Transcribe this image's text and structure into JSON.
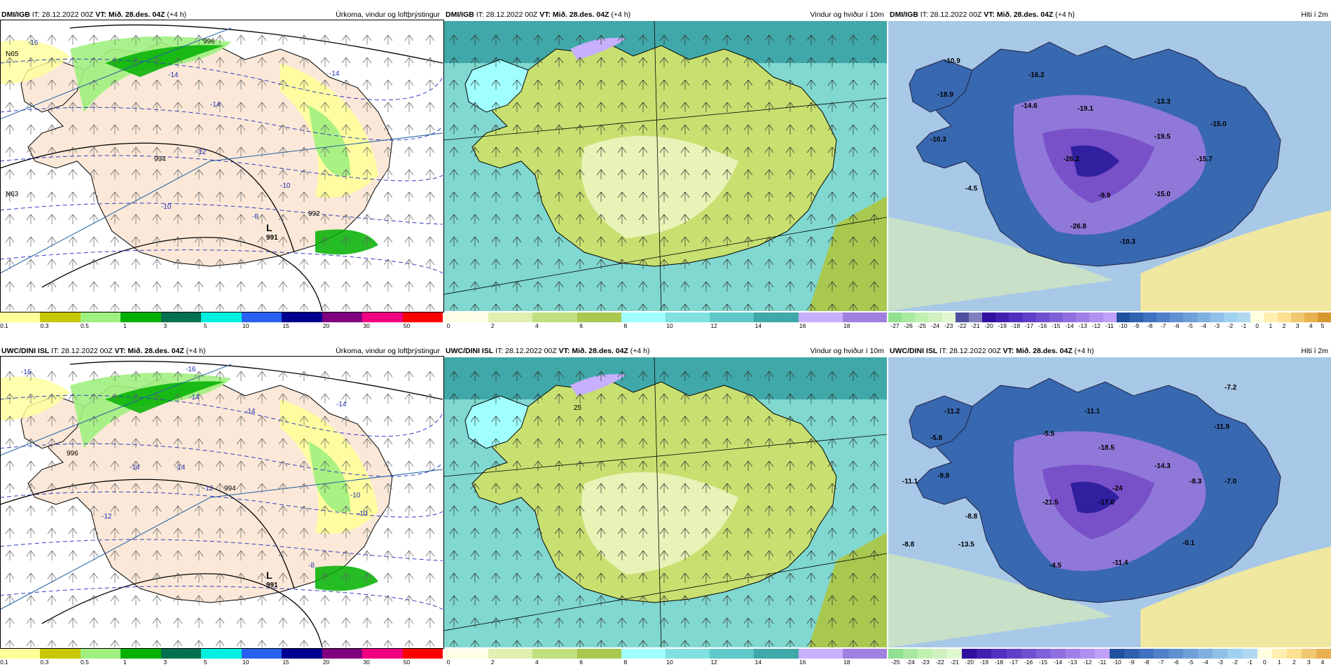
{
  "panels": [
    {
      "id": "p1",
      "model": "DMI/IGB",
      "it": "IT: 28.12.2022 00Z",
      "vt": "VT: Mið. 28.des. 04Z",
      "lead": "(+4 h)",
      "title": "Úrkoma, vindur og loftþrýstingur",
      "kind": "precip",
      "labels": [
        {
          "t": "-16"
        },
        {
          "t": "996"
        },
        {
          "t": "-14"
        },
        {
          "t": "-14"
        },
        {
          "t": "-14"
        },
        {
          "t": "-12"
        },
        {
          "t": "994"
        },
        {
          "t": "-10"
        },
        {
          "t": "-10"
        },
        {
          "t": "-8"
        },
        {
          "t": "992"
        },
        {
          "t": "L"
        },
        {
          "t": "991"
        },
        {
          "t": "N65"
        },
        {
          "t": "N63"
        }
      ]
    },
    {
      "id": "p2",
      "model": "DMI/IGB",
      "it": "IT: 28.12.2022 00Z",
      "vt": "VT: Mið. 28.des. 04Z",
      "lead": "(+4 h)",
      "title": "Vindur og hviður í 10m",
      "kind": "wind",
      "labels": []
    },
    {
      "id": "p3",
      "model": "DMI/IGB",
      "it": "IT: 28.12.2022 00Z",
      "vt": "VT: Mið. 28.des. 04Z",
      "lead": "(+4 h)",
      "title": "Hiti í 2m",
      "kind": "temp",
      "labels": [
        {
          "t": "-10.9"
        },
        {
          "t": "-18.9"
        },
        {
          "t": "-16.2"
        },
        {
          "t": "-14.6"
        },
        {
          "t": "-19.1"
        },
        {
          "t": "-13.3"
        },
        {
          "t": "-10.3"
        },
        {
          "t": "-26.2"
        },
        {
          "t": "-19.5"
        },
        {
          "t": "-15.0"
        },
        {
          "t": "-15.7"
        },
        {
          "t": "-4.5"
        },
        {
          "t": "-9.9"
        },
        {
          "t": "-15.0"
        },
        {
          "t": "-26.8"
        },
        {
          "t": "-10.3"
        }
      ]
    },
    {
      "id": "p4",
      "model": "UWC/DINI ISL",
      "it": "IT: 28.12.2022 00Z",
      "vt": "VT: Mið. 28.des. 04Z",
      "lead": "(+4 h)",
      "title": "Úrkoma, vindur og loftþrýstingur",
      "kind": "precip",
      "labels": [
        {
          "t": "-16"
        },
        {
          "t": "-16"
        },
        {
          "t": "-14"
        },
        {
          "t": "-14"
        },
        {
          "t": "-14"
        },
        {
          "t": "-14"
        },
        {
          "t": "-14"
        },
        {
          "t": "-12"
        },
        {
          "t": "994"
        },
        {
          "t": "-10"
        },
        {
          "t": "-10"
        },
        {
          "t": "-12"
        },
        {
          "t": "-8"
        },
        {
          "t": "L"
        },
        {
          "t": "991"
        },
        {
          "t": "996"
        }
      ]
    },
    {
      "id": "p5",
      "model": "UWC/DINI ISL",
      "it": "IT: 28.12.2022 00Z",
      "vt": "VT: Mið. 28.des. 04Z",
      "lead": "(+4 h)",
      "title": "Vindur og hviður í 10m",
      "kind": "wind",
      "labels": [
        {
          "t": "25"
        }
      ]
    },
    {
      "id": "p6",
      "model": "UWC/DINI ISL",
      "it": "IT: 28.12.2022 00Z",
      "vt": "VT: Mið. 28.des. 04Z",
      "lead": "(+4 h)",
      "title": "Hiti í 2m",
      "kind": "temp",
      "labels": [
        {
          "t": "-7.2"
        },
        {
          "t": "-11.2"
        },
        {
          "t": "-11.1"
        },
        {
          "t": "-11.9"
        },
        {
          "t": "-5.8"
        },
        {
          "t": "-5.5"
        },
        {
          "t": "-18.5"
        },
        {
          "t": "-14.3"
        },
        {
          "t": "-9.9"
        },
        {
          "t": "-11.1"
        },
        {
          "t": "-24"
        },
        {
          "t": "-21.5"
        },
        {
          "t": "-17.0"
        },
        {
          "t": "-8.3"
        },
        {
          "t": "-7.0"
        },
        {
          "t": "-8.8"
        },
        {
          "t": "-8.8"
        },
        {
          "t": "-13.5"
        },
        {
          "t": "-4.5"
        },
        {
          "t": "-11.4"
        },
        {
          "t": "-0.1"
        }
      ]
    }
  ],
  "legends": {
    "precip": {
      "ticks": [
        "0.1",
        "0.3",
        "0.5",
        "1",
        "3",
        "5",
        "10",
        "15",
        "20",
        "30",
        "50"
      ],
      "colors": [
        "#ffff99",
        "#c8c800",
        "#a0f080",
        "#00b000",
        "#007050",
        "#00f0e0",
        "#2860f0",
        "#000090",
        "#800080",
        "#f00080",
        "#ff0000"
      ]
    },
    "wind": {
      "ticks": [
        "0",
        "2",
        "4",
        "6",
        "8",
        "10",
        "12",
        "14",
        "16",
        "18"
      ],
      "colors": [
        "#ffffe8",
        "#dff0b0",
        "#c0e080",
        "#a8c850",
        "#a0ffff",
        "#80e0e0",
        "#60c8c8",
        "#40a8a8",
        "#c8b0ff",
        "#a080e0"
      ]
    },
    "temp_top": {
      "ticks": [
        "-27",
        "-26",
        "-25",
        "-24",
        "-23",
        "-22",
        "-21",
        "-20",
        "-19",
        "-18",
        "-17",
        "-16",
        "-15",
        "-14",
        "-13",
        "-12",
        "-11",
        "-10",
        "-9",
        "-8",
        "-7",
        "-6",
        "-5",
        "-4",
        "-3",
        "-2",
        "-1",
        "0",
        "1",
        "2",
        "3",
        "4",
        "5"
      ]
    },
    "temp_bottom": {
      "ticks": [
        "-25",
        "-24",
        "-23",
        "-22",
        "-21",
        "-20",
        "-19",
        "-18",
        "-17",
        "-16",
        "-15",
        "-14",
        "-13",
        "-12",
        "-11",
        "-10",
        "-9",
        "-8",
        "-7",
        "-6",
        "-5",
        "-4",
        "-3",
        "-2",
        "-1",
        "0",
        "1",
        "2",
        "3",
        "4"
      ]
    }
  },
  "colors": {
    "land_precip": "#fbe8d8",
    "sea_wind": "#80d8d0",
    "land_wind": "#c8e070",
    "temp_sea": "#a8c8e8",
    "temp_land": "#3868b0",
    "temp_cold": "#7850c8"
  }
}
